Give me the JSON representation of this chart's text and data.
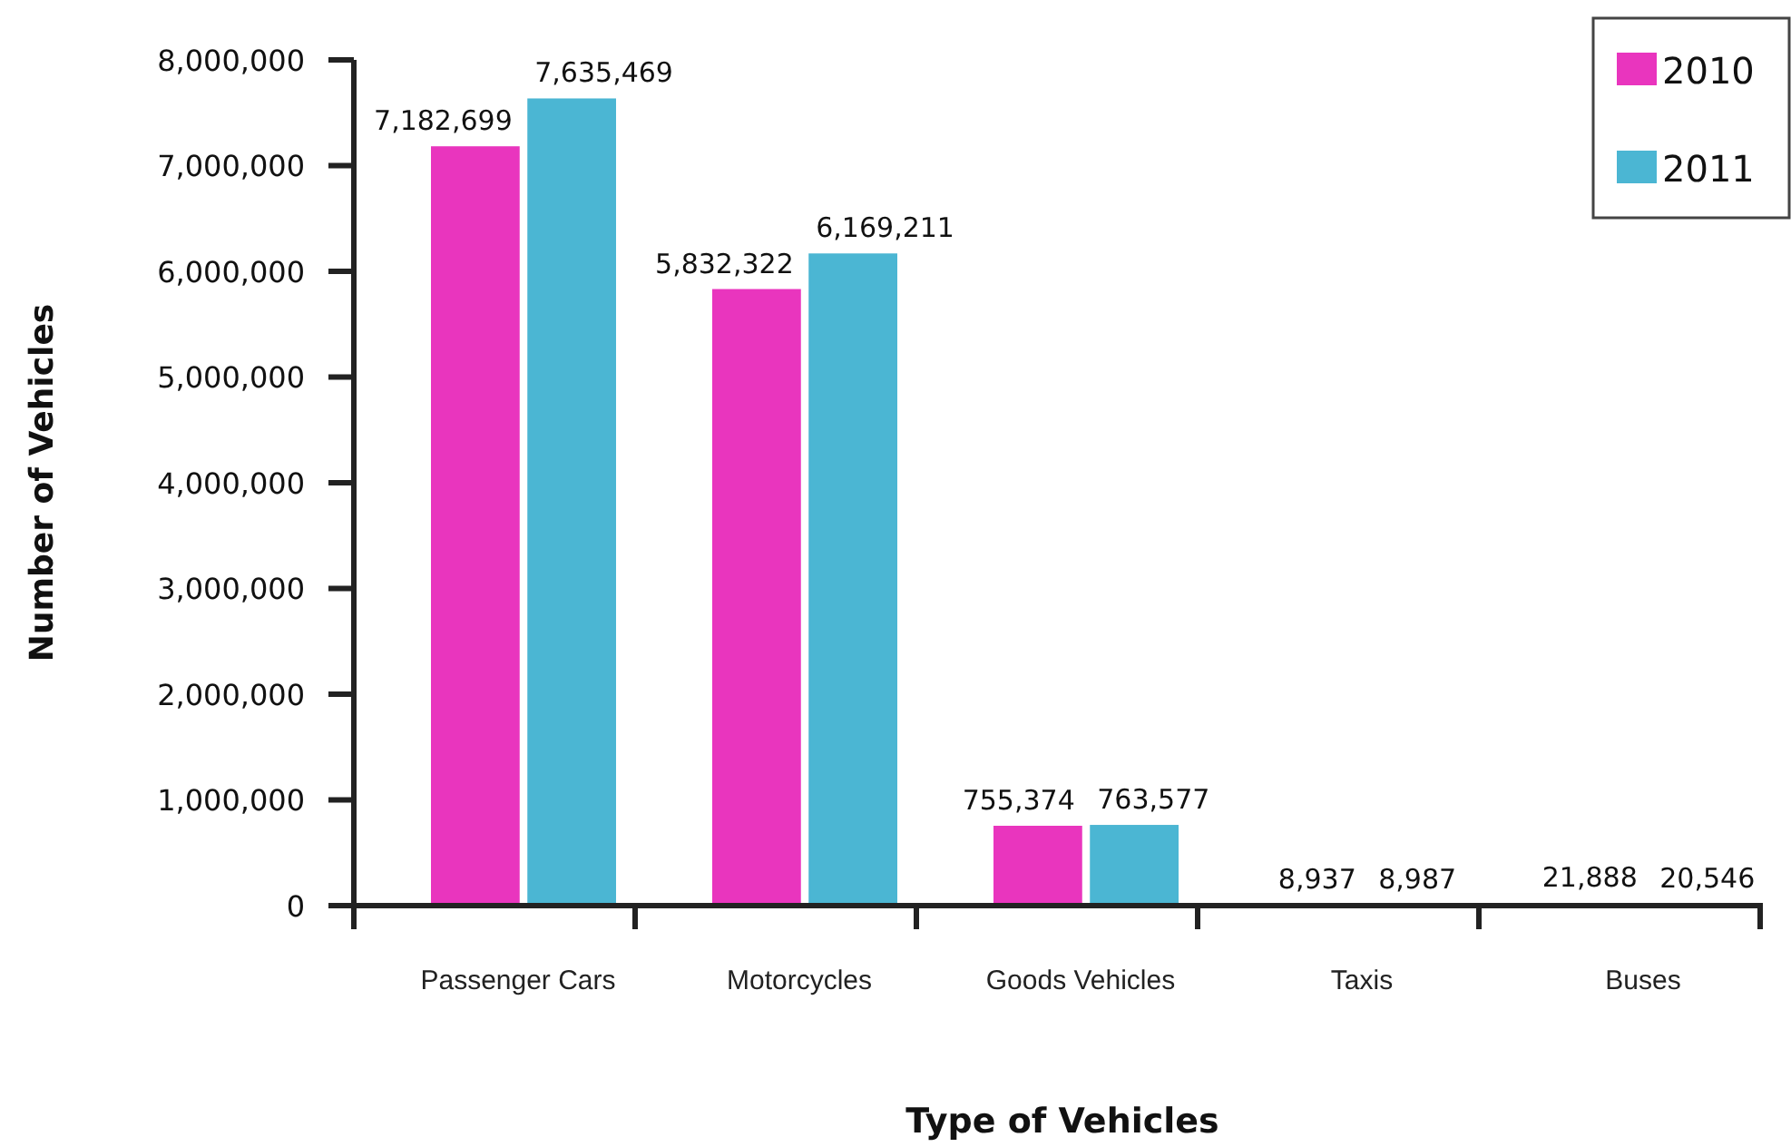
{
  "chart_data": {
    "type": "bar",
    "xlabel": "Type of Vehicles",
    "ylabel": "Number of Vehicles",
    "categories": [
      "Passenger Cars",
      "Motorcycles",
      "Goods Vehicles",
      "Taxis",
      "Buses"
    ],
    "series": [
      {
        "name": "2010",
        "color": "#e935be",
        "values": [
          7182699,
          5832322,
          755374,
          8937,
          21888
        ],
        "value_labels": [
          "7,182,699",
          "5,832,322",
          "755,374",
          "8,937",
          "21,888"
        ]
      },
      {
        "name": "2011",
        "color": "#4bb6d3",
        "values": [
          7635469,
          6169211,
          763577,
          8987,
          20546
        ],
        "value_labels": [
          "7,635,469",
          "6,169,211",
          "763,577",
          "8,987",
          "20,546"
        ]
      }
    ],
    "ylim": [
      0,
      8000000
    ],
    "yticks": [
      0,
      {
        "value": 1000000,
        "label": "1,000,000"
      },
      {
        "value": 2000000,
        "label": "2,000,000"
      },
      {
        "value": 3000000,
        "label": "3,000,000"
      },
      {
        "value": 4000000,
        "label": "4,000,000"
      },
      {
        "value": 5000000,
        "label": "5,000,000"
      },
      {
        "value": 6000000,
        "label": "6,000,000"
      },
      {
        "value": 7000000,
        "label": "7,000,000"
      },
      {
        "value": 8000000,
        "label": "8,000,000"
      }
    ],
    "legend": "top right"
  }
}
